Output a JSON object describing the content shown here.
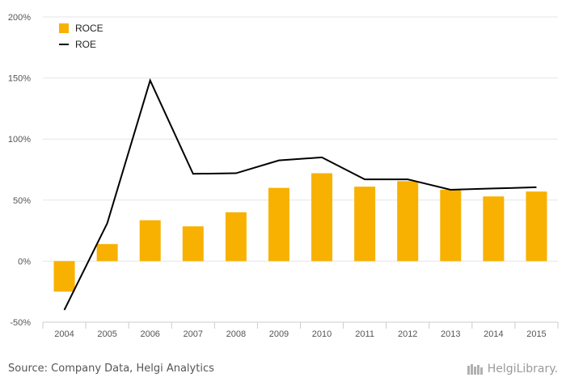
{
  "chart_data": {
    "type": "bar",
    "categories": [
      "2004",
      "2005",
      "2006",
      "2007",
      "2008",
      "2009",
      "2010",
      "2011",
      "2012",
      "2013",
      "2014",
      "2015"
    ],
    "series": [
      {
        "name": "ROCE",
        "type": "bar",
        "color": "#f8b100",
        "values": [
          -25,
          14,
          33.5,
          28.5,
          40,
          60,
          72,
          61,
          65.5,
          58.5,
          53,
          57
        ]
      },
      {
        "name": "ROE",
        "type": "line",
        "color": "#000000",
        "values": [
          -40,
          31,
          148,
          71.5,
          72,
          82.5,
          85,
          67,
          67,
          58.5,
          59.5,
          60.5
        ]
      }
    ],
    "ylim": [
      -50,
      200
    ],
    "yticks": [
      "-50%",
      "0%",
      "50%",
      "100%",
      "150%",
      "200%"
    ],
    "ytick_values": [
      -50,
      0,
      50,
      100,
      150,
      200
    ],
    "grid": true,
    "legend": "top-left",
    "xlabel": "",
    "ylabel": "",
    "title": ""
  },
  "footer": {
    "source": "Source: Company Data, Helgi Analytics",
    "brand": "HelgiLibrary."
  }
}
